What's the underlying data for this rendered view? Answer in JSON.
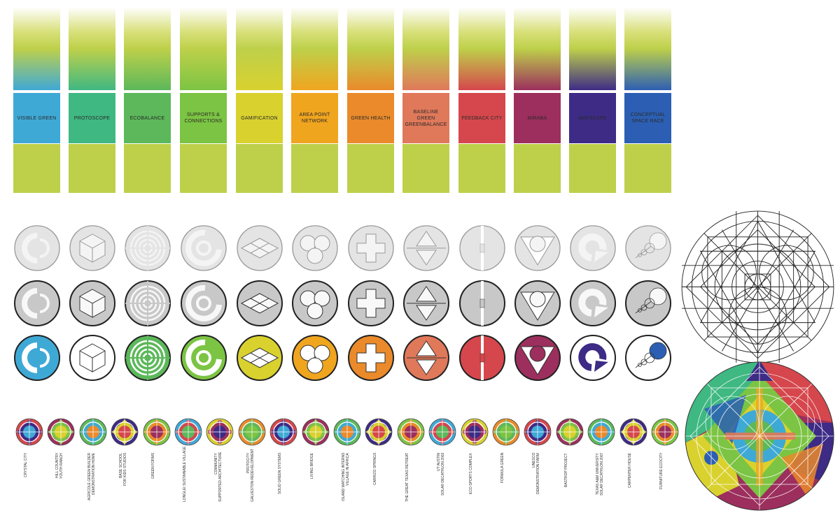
{
  "categories": [
    {
      "label": "VISIBLE GREEN",
      "color": "#3fa9d6"
    },
    {
      "label": "PROTOSCOPE",
      "color": "#3fb882"
    },
    {
      "label": "ECOBALANCE",
      "color": "#5cb85a"
    },
    {
      "label": "SUPPORTS & CONNECTIONS",
      "color": "#7cc443"
    },
    {
      "label": "GAMIFICATION",
      "color": "#d9d12e"
    },
    {
      "label": "AREA POINT NETWORK",
      "color": "#f0a51f"
    },
    {
      "label": "GREEN HEALTH",
      "color": "#ea8a2a"
    },
    {
      "label": "BASELINE GREEN GREENBALANCE",
      "color": "#e0785a"
    },
    {
      "label": "FEEDBACK CITY",
      "color": "#d5474c"
    },
    {
      "label": "MIRABA",
      "color": "#9c2f5d"
    },
    {
      "label": "MAPSCAPE",
      "color": "#3d2b86"
    },
    {
      "label": "CONCEPTUAL SPACE RACE",
      "color": "#2c5fb3"
    }
  ],
  "projects": [
    "CRYSTAL CITY",
    "HILL COUNTRY\nYOUTH RANCH",
    "AGRICOLE GREEN BUILDER\nDEMONSTRATION HOME",
    "BASE SCHOOL\nFOR KIDS STUDIOS",
    "GREEN FORMS",
    "LONGLEI SUSTAINABLE VILLAGE",
    "COMMUNITY\nSUPPORTED ARCHITECTURE",
    "PROTOCITY\nGALVESTON REDEVELOPMENT",
    "SOLID GREEN SYSTEMS",
    "LIVING BRIDGE",
    "ISLAND WATCHING INTERNS\nVILLAGE IN AFRICA",
    "CARRIZO SPRINGS",
    "THE GREAT TEXAS RETREAT",
    "UT AUSTIN\nSOLAR DECATHLON 2002",
    "ECO SPORTS COMPLEX",
    "FORMULA GREEN",
    "UNESCO\nDEMONSTRATION FARM",
    "BASTROP PROJECT",
    "TEXAS A&M UNIVERSITY\nSOLAR DECATHLON 2007",
    "CARPENTER HOUSE",
    "FURNITURE ECOCITY"
  ],
  "projectPalette": [
    "#d5474c",
    "#9c2f5d",
    "#5cb85a",
    "#3d2b86",
    "#7cc443",
    "#3fa9d6",
    "#d9d12e",
    "#ea8a2a"
  ],
  "iconSymbols": [
    "c-ring",
    "cube",
    "target",
    "spiral",
    "diamond-grid",
    "three-circles",
    "cross",
    "hourglass",
    "split",
    "v-drop",
    "arrow-loop",
    "bubbles"
  ]
}
